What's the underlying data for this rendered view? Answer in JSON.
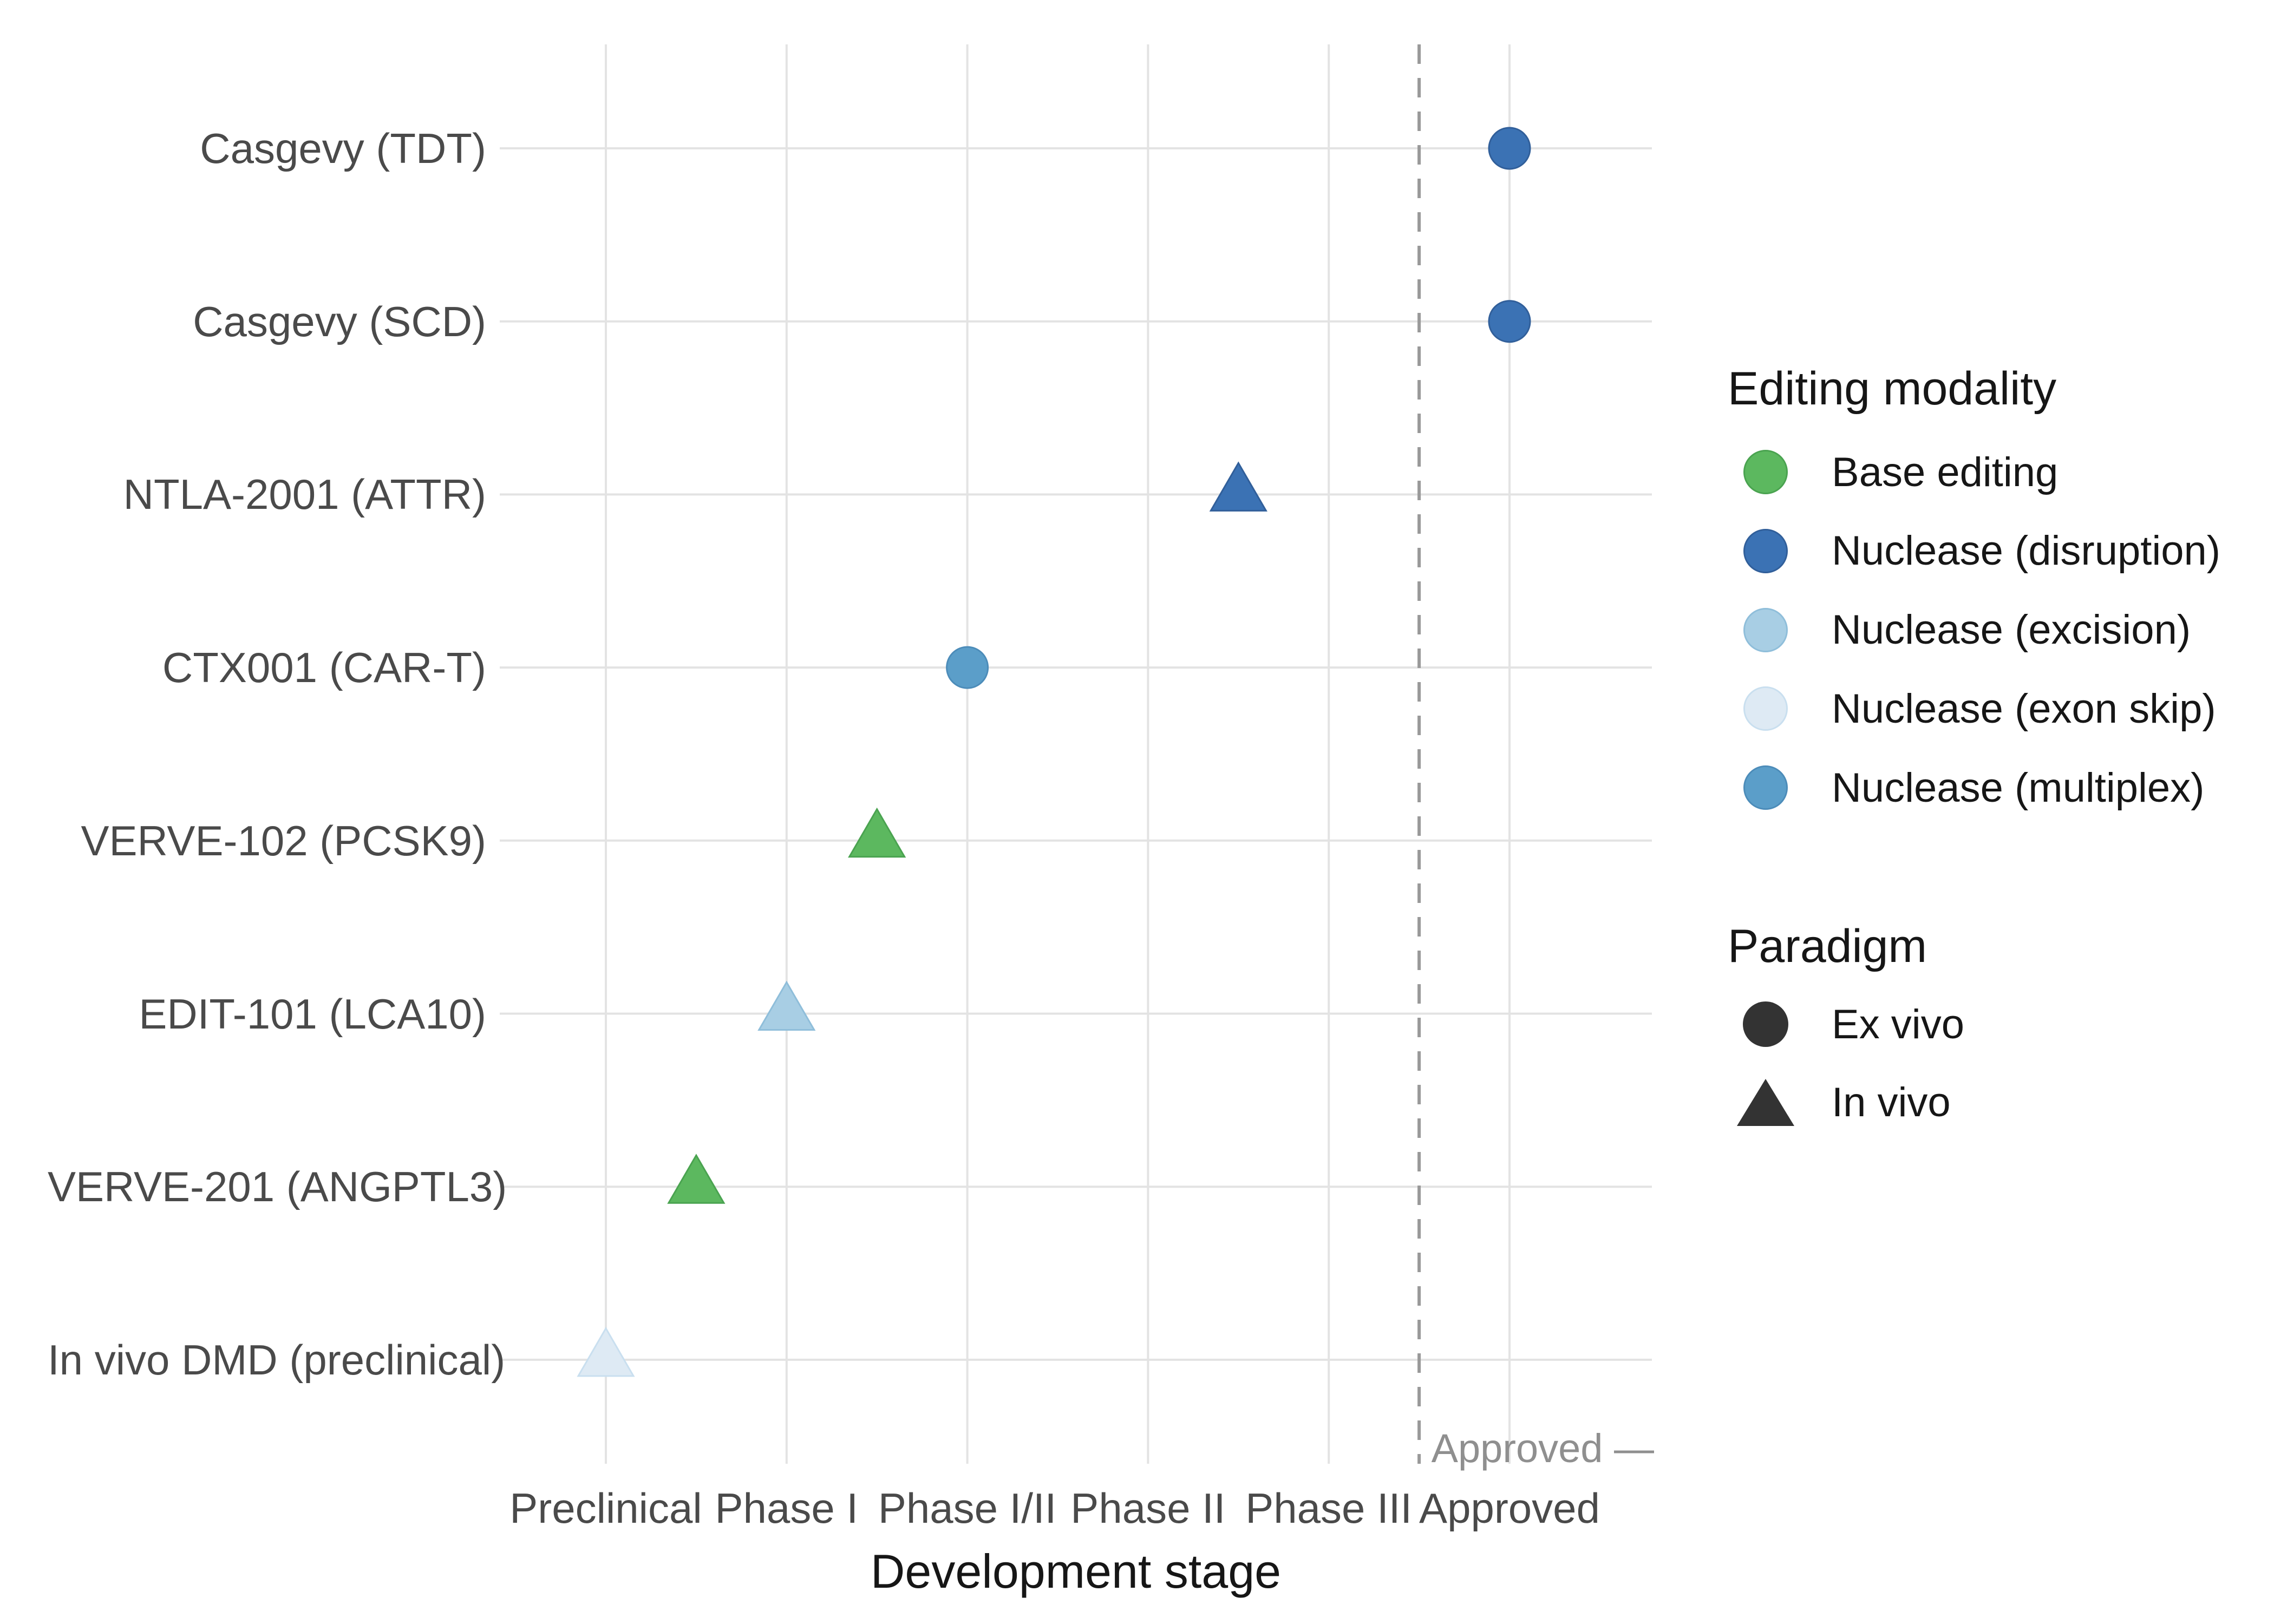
{
  "chart_data": {
    "type": "scatter",
    "title": "",
    "xlabel": "Development stage",
    "ylabel": "",
    "grid": true,
    "legend_position": "right",
    "x_categories": [
      "Preclinical",
      "Phase I",
      "Phase I/II",
      "Phase II",
      "Phase III",
      "Approved"
    ],
    "y_categories": [
      "Casgevy (TDT)",
      "Casgevy (SCD)",
      "NTLA-2001 (ATTR)",
      "CTX001 (CAR-T)",
      "VERVE-102 (PCSK9)",
      "EDIT-101 (LCA10)",
      "VERVE-201 (ANGPTL3)",
      "In vivo DMD (preclinical)"
    ],
    "points": [
      {
        "label": "Casgevy (TDT)",
        "stage": 6,
        "stage_name": "Approved",
        "modality": "disruption",
        "paradigm": "ex_vivo"
      },
      {
        "label": "Casgevy (SCD)",
        "stage": 6,
        "stage_name": "Approved",
        "modality": "disruption",
        "paradigm": "ex_vivo"
      },
      {
        "label": "NTLA-2001 (ATTR)",
        "stage": 4.5,
        "stage_name": "Phase II / Phase III",
        "modality": "disruption",
        "paradigm": "in_vivo"
      },
      {
        "label": "CTX001 (CAR-T)",
        "stage": 3,
        "stage_name": "Phase I/II",
        "modality": "multiplex",
        "paradigm": "ex_vivo"
      },
      {
        "label": "VERVE-102 (PCSK9)",
        "stage": 2.5,
        "stage_name": "Phase I / Phase I/II",
        "modality": "base",
        "paradigm": "in_vivo"
      },
      {
        "label": "EDIT-101 (LCA10)",
        "stage": 2,
        "stage_name": "Phase I",
        "modality": "excision",
        "paradigm": "in_vivo"
      },
      {
        "label": "VERVE-201 (ANGPTL3)",
        "stage": 1.5,
        "stage_name": "Preclinical / Phase I",
        "modality": "base",
        "paradigm": "in_vivo"
      },
      {
        "label": "In vivo DMD (preclinical)",
        "stage": 1,
        "stage_name": "Preclinical",
        "modality": "exon_skip",
        "paradigm": "in_vivo"
      }
    ],
    "threshold_line": {
      "stage": 5.5,
      "style": "dashed",
      "color": "#999999"
    },
    "annotation": "Approved —"
  },
  "legend": {
    "modality": {
      "title": "Editing modality",
      "items": [
        {
          "key": "base",
          "label": "Base editing"
        },
        {
          "key": "disruption",
          "label": "Nuclease (disruption)"
        },
        {
          "key": "excision",
          "label": "Nuclease (excision)"
        },
        {
          "key": "exon_skip",
          "label": "Nuclease (exon skip)"
        },
        {
          "key": "multiplex",
          "label": "Nuclease (multiplex)"
        }
      ]
    },
    "paradigm": {
      "title": "Paradigm",
      "items": [
        {
          "key": "ex_vivo",
          "label": "Ex vivo",
          "shape": "circle"
        },
        {
          "key": "in_vivo",
          "label": "In vivo",
          "shape": "triangle"
        }
      ]
    }
  },
  "colors": {
    "base": {
      "fill": "#5CB85F",
      "stroke": "#4AA350"
    },
    "disruption": {
      "fill": "#3B72B4",
      "stroke": "#315F9A"
    },
    "excision": {
      "fill": "#A8CEE4",
      "stroke": "#8FBEDA"
    },
    "exon_skip": {
      "fill": "#DEEAF4",
      "stroke": "#C9DFEF"
    },
    "multiplex": {
      "fill": "#5B9EC9",
      "stroke": "#4C8CB9"
    },
    "paradigm_key": "#333333",
    "gridline": "#E3E3E3",
    "dashed_line": "#999999",
    "axis_text": "#4a4a4a",
    "title_text": "#161616",
    "annotation_text": "#8f8f8f"
  }
}
